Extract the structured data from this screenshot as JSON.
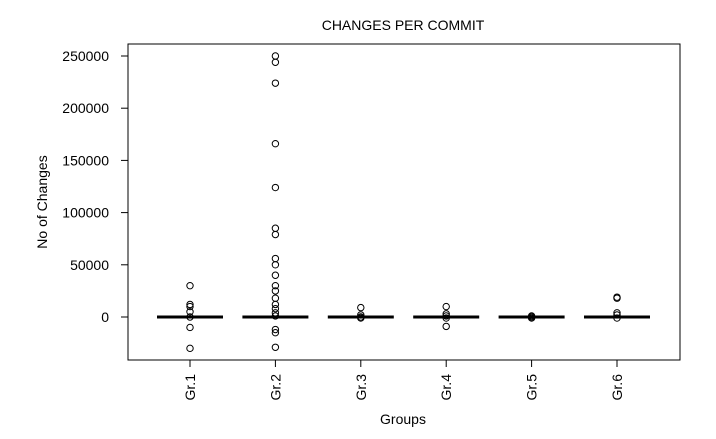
{
  "chart_data": {
    "type": "boxplot",
    "title": "CHANGES PER COMMIT",
    "xlabel": "Groups",
    "ylabel": "No of Changes",
    "ylim": [
      -40000,
      260000
    ],
    "yticks": [
      0,
      50000,
      100000,
      150000,
      200000,
      250000
    ],
    "ytick_labels": [
      "0",
      "50000",
      "100000",
      "150000",
      "200000",
      "250000"
    ],
    "categories": [
      "Gr.1",
      "Gr.2",
      "Gr.3",
      "Gr.4",
      "Gr.5",
      "Gr.6"
    ],
    "grid": false,
    "series": [
      {
        "median": 0,
        "outliers": [
          30000,
          12000,
          10000,
          5000,
          0,
          -10000,
          -30000
        ]
      },
      {
        "median": 0,
        "outliers": [
          250000,
          244000,
          224000,
          166000,
          124000,
          85000,
          79000,
          56000,
          50000,
          40000,
          30000,
          25000,
          18000,
          12000,
          8000,
          4000,
          1000,
          -12000,
          -15000,
          -29000
        ]
      },
      {
        "median": 0,
        "outliers": [
          9000,
          2000,
          0,
          -1000
        ]
      },
      {
        "median": 0,
        "outliers": [
          10000,
          3000,
          1000,
          -1000,
          -9000
        ]
      },
      {
        "median": 0,
        "outliers": [
          1000,
          0,
          -1000
        ]
      },
      {
        "median": 0,
        "outliers": [
          19000,
          18000,
          4000,
          2000,
          -1000
        ]
      }
    ]
  }
}
